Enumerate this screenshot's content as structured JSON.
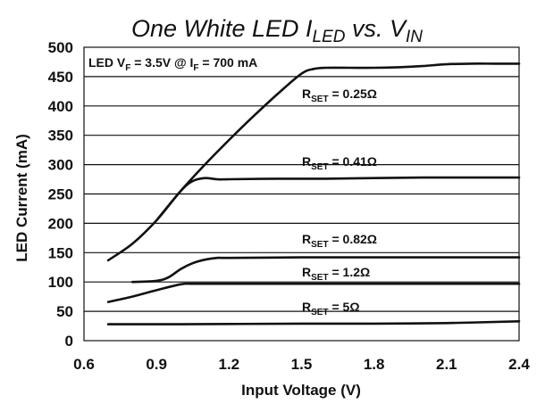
{
  "chart_data": {
    "type": "line",
    "title": {
      "main": "One White LED I",
      "i_sub": "LED",
      "mid": " vs. V",
      "v_sub": "IN"
    },
    "xlabel": "Input Voltage (V)",
    "ylabel": "LED Current (mA)",
    "xlim": [
      0.6,
      2.4
    ],
    "ylim": [
      0,
      500
    ],
    "xticks": [
      0.6,
      0.9,
      1.2,
      1.5,
      1.8,
      2.1,
      2.4
    ],
    "xtick_labels": [
      "0.6",
      "0.9",
      "1.2",
      "1.5",
      "1.8",
      "2.1",
      "2.4"
    ],
    "yticks": [
      0,
      50,
      100,
      150,
      200,
      250,
      300,
      350,
      400,
      450,
      500
    ],
    "ytick_labels": [
      "0",
      "50",
      "100",
      "150",
      "200",
      "250",
      "300",
      "350",
      "400",
      "450",
      "500"
    ],
    "grid": "horizontal",
    "annotation": {
      "prefix": "LED V",
      "sub1": "F",
      "mid": " = 3.5V @ I",
      "sub2": "F",
      "suffix": " = 700 mA"
    },
    "series": [
      {
        "name": "RSET = 0.25Ω",
        "label_main": "R",
        "label_sub": "SET",
        "label_value": " = 0.25Ω",
        "x": [
          0.7,
          0.8,
          0.9,
          1.0,
          1.1,
          1.2,
          1.3,
          1.4,
          1.5,
          1.55,
          1.6,
          1.7,
          1.8,
          1.9,
          2.0,
          2.1,
          2.2,
          2.3,
          2.4
        ],
        "y": [
          137,
          165,
          205,
          255,
          300,
          342,
          382,
          420,
          455,
          463,
          465,
          465,
          465,
          466,
          468,
          471,
          472,
          472,
          472
        ]
      },
      {
        "name": "RSET = 0.41Ω",
        "label_main": "R",
        "label_sub": "SET",
        "label_value": " = 0.41Ω",
        "x": [
          0.9,
          1.0,
          1.05,
          1.1,
          1.15,
          1.2,
          1.4,
          1.6,
          1.8,
          2.0,
          2.2,
          2.4
        ],
        "y": [
          205,
          255,
          272,
          277,
          275,
          275,
          276,
          276,
          277,
          278,
          278,
          278
        ]
      },
      {
        "name": "RSET = 0.82Ω",
        "label_main": "R",
        "label_sub": "SET",
        "label_value": " = 0.82Ω",
        "x": [
          0.8,
          0.9,
          0.95,
          1.0,
          1.05,
          1.1,
          1.15,
          1.2,
          1.5,
          1.8,
          2.1,
          2.4
        ],
        "y": [
          100,
          102,
          108,
          122,
          132,
          138,
          141,
          141,
          142,
          142,
          142,
          142
        ]
      },
      {
        "name": "RSET = 1.2Ω",
        "label_main": "R",
        "label_sub": "SET",
        "label_value": " = 1.2Ω",
        "x": [
          0.7,
          0.8,
          0.9,
          1.0,
          1.05,
          1.1,
          1.2,
          1.5,
          1.8,
          2.1,
          2.4
        ],
        "y": [
          66,
          75,
          86,
          96,
          97,
          97,
          97,
          97,
          97,
          97,
          97
        ]
      },
      {
        "name": "RSET = 5Ω",
        "label_main": "R",
        "label_sub": "SET",
        "label_value": " = 5Ω",
        "x": [
          0.7,
          1.0,
          1.5,
          1.8,
          2.1,
          2.4
        ],
        "y": [
          28,
          28,
          29,
          29,
          30,
          33
        ]
      }
    ]
  }
}
